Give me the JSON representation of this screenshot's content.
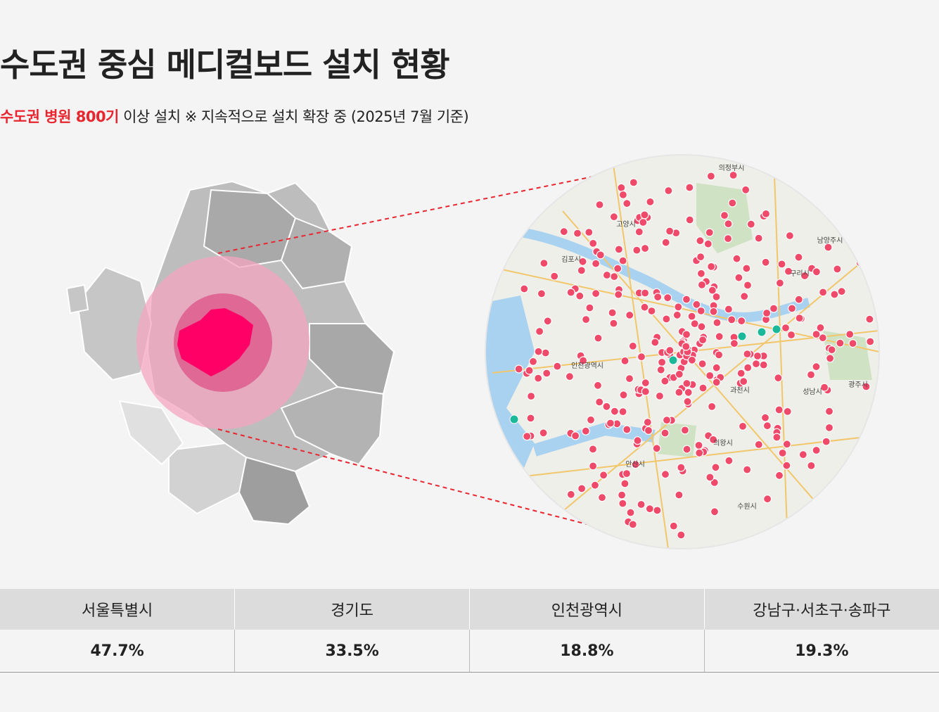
{
  "header": {
    "title": "수도권 중심 메디컬보드 설치 현황",
    "subtitle_highlight": "수도권 병원 800기",
    "subtitle_rest": " 이상 설치 ※ 지속적으로 설치 확장 중 (2025년 7월 기준)"
  },
  "map_labels": [
    "의정부시",
    "남양주시",
    "고양시",
    "김포시",
    "구리시",
    "인천광역시",
    "과천시",
    "성남시",
    "광주시",
    "의왕시",
    "안산시",
    "수원시"
  ],
  "table": {
    "headers": [
      "서울특별시",
      "경기도",
      "인천광역시",
      "강남구·서초구·송파구"
    ],
    "rows": [
      [
        "47.7%",
        "33.5%",
        "18.8%",
        "19.3%"
      ]
    ]
  }
}
